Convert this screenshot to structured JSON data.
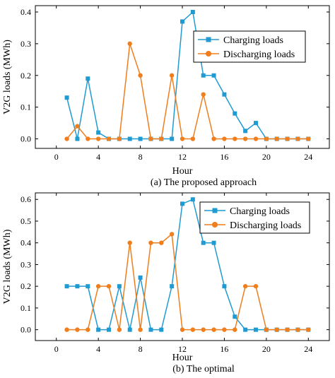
{
  "chart_data": [
    {
      "type": "line",
      "caption": "(a)  The proposed approach",
      "xlabel": "Hour",
      "ylabel": "V2G loads (MWh)",
      "xlim": [
        -2,
        26
      ],
      "ylim": [
        -0.03,
        0.42
      ],
      "xticks": [
        0,
        4,
        8,
        12,
        16,
        20,
        24
      ],
      "yticks": [
        0.0,
        0.1,
        0.2,
        0.3,
        0.4
      ],
      "ytick_labels": [
        "0.0",
        "0.1",
        "0.2",
        "0.3",
        "0.4"
      ],
      "legend_position": "top-right",
      "x": [
        1,
        2,
        3,
        4,
        5,
        6,
        7,
        8,
        9,
        10,
        11,
        12,
        13,
        14,
        15,
        16,
        17,
        18,
        19,
        20,
        21,
        22,
        23,
        24
      ],
      "series": [
        {
          "name": "Charging loads",
          "color": "#1f9bd1",
          "marker": "square",
          "values": [
            0.13,
            0.0,
            0.19,
            0.02,
            0.0,
            0.0,
            0.0,
            0.0,
            0.0,
            0.0,
            0.0,
            0.37,
            0.4,
            0.2,
            0.2,
            0.14,
            0.08,
            0.025,
            0.05,
            0.0,
            0.0,
            0.0,
            0.0,
            0.0
          ]
        },
        {
          "name": "Discharging loads",
          "color": "#f07e1d",
          "marker": "circle",
          "values": [
            0.0,
            0.04,
            0.0,
            0.0,
            0.0,
            0.0,
            0.3,
            0.2,
            0.0,
            0.0,
            0.2,
            0.0,
            0.0,
            0.14,
            0.0,
            0.0,
            0.0,
            0.0,
            0.0,
            0.0,
            0.0,
            0.0,
            0.0,
            0.0
          ]
        }
      ]
    },
    {
      "type": "line",
      "caption": "(b)  The optimal",
      "xlabel": "Hour",
      "ylabel": "V2G loads (MWh)",
      "xlim": [
        -2,
        26
      ],
      "ylim": [
        -0.05,
        0.63
      ],
      "xticks": [
        0,
        4,
        8,
        12,
        16,
        20,
        24
      ],
      "yticks": [
        0.0,
        0.1,
        0.2,
        0.3,
        0.4,
        0.5,
        0.6
      ],
      "ytick_labels": [
        "0.0",
        "0.1",
        "0.2",
        "0.3",
        "0.4",
        "0.5",
        "0.6"
      ],
      "legend_position": "top-right",
      "x": [
        1,
        2,
        3,
        4,
        5,
        6,
        7,
        8,
        9,
        10,
        11,
        12,
        13,
        14,
        15,
        16,
        17,
        18,
        19,
        20,
        21,
        22,
        23,
        24
      ],
      "series": [
        {
          "name": "Charging loads",
          "color": "#1f9bd1",
          "marker": "square",
          "values": [
            0.2,
            0.2,
            0.2,
            0.0,
            0.0,
            0.2,
            0.0,
            0.24,
            0.0,
            0.0,
            0.2,
            0.58,
            0.6,
            0.4,
            0.4,
            0.2,
            0.06,
            0.0,
            0.0,
            0.0,
            0.0,
            0.0,
            0.0,
            0.0
          ]
        },
        {
          "name": "Discharging loads",
          "color": "#f07e1d",
          "marker": "circle",
          "values": [
            0.0,
            0.0,
            0.0,
            0.2,
            0.2,
            0.0,
            0.4,
            0.0,
            0.4,
            0.4,
            0.44,
            0.0,
            0.0,
            0.0,
            0.0,
            0.0,
            0.0,
            0.2,
            0.2,
            0.0,
            0.0,
            0.0,
            0.0,
            0.0
          ]
        }
      ]
    }
  ]
}
